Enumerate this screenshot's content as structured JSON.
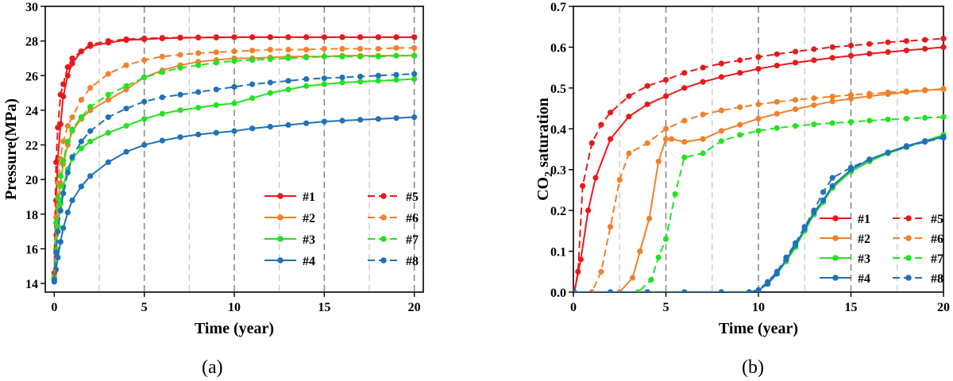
{
  "captions": {
    "a": "(a)",
    "b": "(b)"
  },
  "chart_data": [
    {
      "type": "line",
      "panel": "a",
      "xlabel": "Time (year)",
      "ylabel": "Pressure(MPa)",
      "xlim": [
        -0.5,
        20.5
      ],
      "ylim": [
        13.5,
        30
      ],
      "xticks": [
        0,
        5,
        10,
        15,
        20
      ],
      "yticks": [
        14,
        16,
        18,
        20,
        22,
        24,
        26,
        28,
        30
      ],
      "vlines": [
        {
          "x": 2.5,
          "style": "light"
        },
        {
          "x": 5,
          "style": "dark"
        },
        {
          "x": 7.5,
          "style": "light"
        },
        {
          "x": 10,
          "style": "dark"
        },
        {
          "x": 12.5,
          "style": "light"
        },
        {
          "x": 15,
          "style": "dark"
        },
        {
          "x": 17.5,
          "style": "light"
        },
        {
          "x": 20,
          "style": "dark"
        }
      ],
      "legend_position": "lower-right",
      "series": [
        {
          "name": "#1",
          "color": "#e8191c",
          "dash": false,
          "x": [
            0,
            0.1,
            0.2,
            0.35,
            0.5,
            0.75,
            1,
            1.5,
            2,
            3,
            4,
            5,
            6,
            7,
            8,
            9,
            10,
            11,
            12,
            13,
            14,
            15,
            16,
            17,
            18,
            19,
            20
          ],
          "y": [
            14.3,
            18.8,
            21.2,
            23.2,
            24.8,
            26.0,
            26.7,
            27.4,
            27.7,
            27.9,
            28.05,
            28.1,
            28.15,
            28.18,
            28.2,
            28.2,
            28.22,
            28.22,
            28.22,
            28.22,
            28.22,
            28.22,
            28.22,
            28.22,
            28.22,
            28.22,
            28.22
          ]
        },
        {
          "name": "#2",
          "color": "#f2812a",
          "dash": false,
          "x": [
            0,
            0.1,
            0.2,
            0.35,
            0.5,
            0.75,
            1,
            1.5,
            2,
            3,
            4,
            5,
            6,
            7,
            8,
            9,
            10,
            11,
            12,
            13,
            14,
            15,
            16,
            17,
            18,
            19,
            20
          ],
          "y": [
            14.3,
            16.8,
            18.3,
            19.8,
            20.9,
            22.0,
            22.8,
            23.5,
            24.0,
            24.6,
            25.2,
            25.9,
            26.3,
            26.6,
            26.8,
            26.9,
            27.0,
            27.0,
            27.05,
            27.1,
            27.1,
            27.1,
            27.15,
            27.15,
            27.15,
            27.15,
            27.15
          ]
        },
        {
          "name": "#3",
          "color": "#22e322",
          "dash": false,
          "x": [
            0,
            0.1,
            0.2,
            0.35,
            0.5,
            0.75,
            1,
            1.5,
            2,
            3,
            4,
            5,
            6,
            7,
            8,
            9,
            10,
            11,
            12,
            13,
            14,
            15,
            16,
            17,
            18,
            19,
            20
          ],
          "y": [
            14.3,
            16.0,
            17.3,
            18.6,
            19.6,
            20.6,
            21.2,
            21.8,
            22.2,
            22.7,
            23.1,
            23.5,
            23.8,
            24.0,
            24.15,
            24.3,
            24.4,
            24.7,
            25.0,
            25.2,
            25.4,
            25.5,
            25.6,
            25.65,
            25.7,
            25.75,
            25.8
          ]
        },
        {
          "name": "#4",
          "color": "#1f72b8",
          "dash": false,
          "x": [
            0,
            0.1,
            0.2,
            0.35,
            0.5,
            0.75,
            1,
            1.5,
            2,
            3,
            4,
            5,
            6,
            7,
            8,
            9,
            10,
            11,
            12,
            13,
            14,
            15,
            16,
            17,
            18,
            19,
            20
          ],
          "y": [
            14.1,
            14.8,
            15.5,
            16.4,
            17.2,
            18.1,
            18.8,
            19.6,
            20.2,
            21.0,
            21.6,
            22.0,
            22.25,
            22.45,
            22.6,
            22.7,
            22.8,
            22.95,
            23.05,
            23.15,
            23.25,
            23.35,
            23.4,
            23.45,
            23.5,
            23.55,
            23.6
          ]
        },
        {
          "name": "#5",
          "color": "#e8191c",
          "dash": true,
          "x": [
            0,
            0.1,
            0.2,
            0.35,
            0.5,
            0.75,
            1,
            1.5,
            2,
            3,
            4,
            5,
            6,
            7,
            8,
            9,
            10,
            11,
            12,
            13,
            14,
            15,
            16,
            17,
            18,
            19,
            20
          ],
          "y": [
            14.6,
            21.0,
            23.0,
            24.9,
            25.5,
            26.5,
            27.0,
            27.4,
            27.8,
            28.0,
            28.1,
            28.15,
            28.18,
            28.2,
            28.2,
            28.22,
            28.22,
            28.22,
            28.22,
            28.22,
            28.22,
            28.22,
            28.22,
            28.22,
            28.22,
            28.22,
            28.22
          ]
        },
        {
          "name": "#6",
          "color": "#f2812a",
          "dash": true,
          "x": [
            0,
            0.1,
            0.2,
            0.35,
            0.5,
            0.75,
            1,
            1.5,
            2,
            3,
            4,
            5,
            6,
            7,
            8,
            9,
            10,
            11,
            12,
            13,
            14,
            15,
            16,
            17,
            18,
            19,
            20
          ],
          "y": [
            14.4,
            17.8,
            19.8,
            21.2,
            22.2,
            23.1,
            23.6,
            24.6,
            25.3,
            26.1,
            26.6,
            26.9,
            27.1,
            27.2,
            27.3,
            27.35,
            27.4,
            27.45,
            27.5,
            27.5,
            27.5,
            27.55,
            27.55,
            27.55,
            27.55,
            27.6,
            27.6
          ]
        },
        {
          "name": "#7",
          "color": "#22e322",
          "dash": true,
          "x": [
            0,
            0.1,
            0.2,
            0.35,
            0.5,
            0.75,
            1,
            1.5,
            2,
            3,
            4,
            5,
            6,
            7,
            8,
            9,
            10,
            11,
            12,
            13,
            14,
            15,
            16,
            17,
            18,
            19,
            20
          ],
          "y": [
            14.3,
            17.5,
            18.9,
            20.2,
            21.1,
            22.2,
            22.9,
            23.6,
            24.2,
            24.9,
            25.4,
            25.9,
            26.2,
            26.45,
            26.6,
            26.75,
            26.85,
            26.9,
            26.95,
            27.0,
            27.05,
            27.1,
            27.1,
            27.1,
            27.1,
            27.15,
            27.15
          ]
        },
        {
          "name": "#8",
          "color": "#1f72b8",
          "dash": true,
          "x": [
            0,
            0.1,
            0.2,
            0.35,
            0.5,
            0.75,
            1,
            1.5,
            2,
            3,
            4,
            5,
            6,
            7,
            8,
            9,
            10,
            11,
            12,
            13,
            14,
            15,
            16,
            17,
            18,
            19,
            20
          ],
          "y": [
            14.2,
            15.8,
            17.0,
            18.2,
            19.2,
            20.4,
            21.3,
            22.2,
            22.8,
            23.6,
            24.1,
            24.5,
            24.75,
            24.9,
            25.05,
            25.2,
            25.35,
            25.5,
            25.6,
            25.7,
            25.8,
            25.85,
            25.9,
            25.95,
            26.0,
            26.05,
            26.1
          ]
        }
      ]
    },
    {
      "type": "line",
      "panel": "b",
      "xlabel": "Time (year)",
      "ylabel_main": "CO",
      "ylabel_sub": "2",
      "ylabel_rest": " saturation",
      "xlim": [
        0,
        20
      ],
      "ylim": [
        0,
        0.7
      ],
      "xticks": [
        0,
        5,
        10,
        15,
        20
      ],
      "yticks": [
        0.0,
        0.1,
        0.2,
        0.3,
        0.4,
        0.5,
        0.6,
        0.7
      ],
      "ytick_labels": [
        "0.0",
        "0.1",
        "0.2",
        "0.3",
        "0.4",
        "0.5",
        "0.6",
        "0.7"
      ],
      "vlines": [
        {
          "x": 2.5,
          "style": "light"
        },
        {
          "x": 5,
          "style": "dark"
        },
        {
          "x": 7.5,
          "style": "light"
        },
        {
          "x": 10,
          "style": "dark"
        },
        {
          "x": 12.5,
          "style": "light"
        },
        {
          "x": 15,
          "style": "dark"
        },
        {
          "x": 17.5,
          "style": "light"
        }
      ],
      "legend_position": "lower-left",
      "series": [
        {
          "name": "#1",
          "color": "#e8191c",
          "dash": false,
          "x": [
            0.05,
            0.4,
            0.8,
            1.2,
            2,
            3,
            4,
            5,
            6,
            7,
            8,
            9,
            10,
            11,
            12,
            13,
            14,
            15,
            16,
            17,
            18,
            19,
            20
          ],
          "y": [
            0,
            0.08,
            0.2,
            0.28,
            0.375,
            0.43,
            0.46,
            0.48,
            0.5,
            0.515,
            0.527,
            0.537,
            0.547,
            0.555,
            0.562,
            0.568,
            0.574,
            0.579,
            0.584,
            0.588,
            0.592,
            0.596,
            0.6
          ]
        },
        {
          "name": "#2",
          "color": "#f2812a",
          "dash": false,
          "x": [
            0.05,
            1,
            2,
            2.5,
            3.2,
            3.6,
            4.1,
            4.6,
            5.0,
            5.3,
            6,
            7,
            8,
            9,
            10,
            11,
            12,
            13,
            14,
            15,
            16,
            17,
            18,
            19,
            20
          ],
          "y": [
            0,
            0,
            0,
            0,
            0.035,
            0.1,
            0.18,
            0.32,
            0.375,
            0.375,
            0.368,
            0.375,
            0.395,
            0.41,
            0.425,
            0.437,
            0.448,
            0.458,
            0.467,
            0.474,
            0.48,
            0.485,
            0.49,
            0.494,
            0.498
          ]
        },
        {
          "name": "#3",
          "color": "#22e322",
          "dash": false,
          "x": [
            0.05,
            2,
            4,
            6,
            8,
            9.5,
            10,
            10.5,
            11,
            11.5,
            12,
            12.5,
            13,
            13.5,
            14,
            15,
            16,
            17,
            18,
            19,
            20
          ],
          "y": [
            0,
            0,
            0,
            0,
            0,
            0,
            0.005,
            0.02,
            0.045,
            0.075,
            0.11,
            0.15,
            0.19,
            0.22,
            0.255,
            0.295,
            0.32,
            0.34,
            0.355,
            0.37,
            0.385
          ]
        },
        {
          "name": "#4",
          "color": "#1f72b8",
          "dash": false,
          "x": [
            0.05,
            2,
            4,
            6,
            8,
            9.5,
            10,
            10.5,
            11,
            11.5,
            12,
            12.5,
            13,
            13.5,
            14,
            15,
            16,
            17,
            18,
            19,
            20
          ],
          "y": [
            0,
            0,
            0,
            0,
            0,
            0,
            0.005,
            0.02,
            0.045,
            0.08,
            0.115,
            0.155,
            0.195,
            0.225,
            0.26,
            0.3,
            0.325,
            0.342,
            0.358,
            0.37,
            0.38
          ]
        },
        {
          "name": "#5",
          "color": "#e8191c",
          "dash": true,
          "x": [
            0.05,
            0.25,
            0.5,
            1,
            1.5,
            2,
            3,
            4,
            5,
            6,
            7,
            8,
            9,
            10,
            11,
            12,
            13,
            14,
            15,
            16,
            17,
            18,
            19,
            20
          ],
          "y": [
            0,
            0.05,
            0.26,
            0.365,
            0.41,
            0.44,
            0.48,
            0.505,
            0.52,
            0.537,
            0.55,
            0.56,
            0.568,
            0.576,
            0.583,
            0.589,
            0.595,
            0.6,
            0.604,
            0.608,
            0.612,
            0.615,
            0.618,
            0.621
          ]
        },
        {
          "name": "#6",
          "color": "#f2812a",
          "dash": true,
          "x": [
            0.05,
            1,
            1.5,
            2,
            2.5,
            3,
            4,
            5,
            6,
            7,
            8,
            9,
            10,
            11,
            12,
            13,
            14,
            15,
            16,
            17,
            18,
            19,
            20
          ],
          "y": [
            0,
            0,
            0.05,
            0.16,
            0.275,
            0.34,
            0.365,
            0.4,
            0.42,
            0.435,
            0.445,
            0.453,
            0.46,
            0.466,
            0.471,
            0.475,
            0.479,
            0.483,
            0.486,
            0.489,
            0.492,
            0.495,
            0.497
          ]
        },
        {
          "name": "#7",
          "color": "#22e322",
          "dash": true,
          "x": [
            0.05,
            2,
            3.5,
            4.2,
            4.6,
            5,
            5.5,
            6,
            7,
            8,
            9,
            10,
            11,
            12,
            13,
            14,
            15,
            16,
            17,
            18,
            19,
            20
          ],
          "y": [
            0,
            0,
            0,
            0.03,
            0.085,
            0.13,
            0.24,
            0.33,
            0.34,
            0.37,
            0.385,
            0.395,
            0.402,
            0.407,
            0.411,
            0.414,
            0.417,
            0.42,
            0.423,
            0.425,
            0.427,
            0.429
          ]
        },
        {
          "name": "#8",
          "color": "#1f72b8",
          "dash": true,
          "x": [
            0.05,
            2,
            4,
            6,
            8,
            9.5,
            10,
            10.5,
            11,
            11.5,
            12,
            12.5,
            13,
            13.5,
            14,
            15,
            16,
            17,
            18,
            19,
            20
          ],
          "y": [
            0,
            0,
            0,
            0,
            0,
            0,
            0.005,
            0.025,
            0.05,
            0.085,
            0.12,
            0.16,
            0.2,
            0.245,
            0.28,
            0.305,
            0.325,
            0.342,
            0.356,
            0.368,
            0.378
          ]
        }
      ]
    }
  ]
}
